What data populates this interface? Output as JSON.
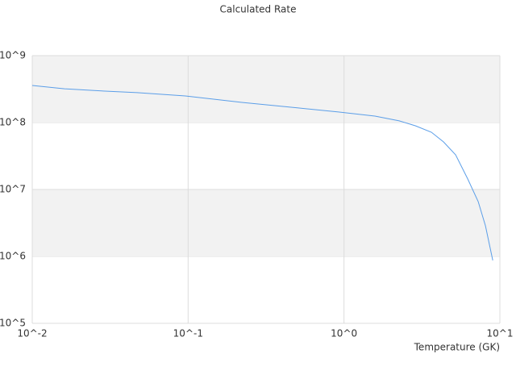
{
  "chart_data": {
    "type": "line",
    "title": "Calculated Rate",
    "x_label": "Temperature (GK)",
    "x_log": true,
    "y_log": true,
    "grid_bands": true,
    "color": "#5b9ee8",
    "xlim": [
      0.01,
      10
    ],
    "xticks": [
      {
        "value": 0.01,
        "label": "10^-2"
      },
      {
        "value": 0.1,
        "label": "10^-1"
      },
      {
        "value": 1,
        "label": "10^0"
      },
      {
        "value": 10,
        "label": "10^1"
      }
    ],
    "ylim": [
      100000,
      1000000000
    ],
    "yticks": [
      {
        "value": 100000,
        "label": "10^5"
      },
      {
        "value": 1000000,
        "label": "10^6"
      },
      {
        "value": 10000000,
        "label": "10^7"
      },
      {
        "value": 100000000,
        "label": "10^8"
      },
      {
        "value": 1000000000,
        "label": "10^9"
      }
    ],
    "x": [
      0.01,
      0.0161,
      0.0292,
      0.047,
      0.096,
      0.221,
      0.509,
      0.92,
      1.58,
      2.26,
      2.87,
      3.64,
      4.35,
      5.2,
      6.22,
      7.26,
      8.08,
      9.0
    ],
    "values": [
      358000000,
      320000000,
      295000000,
      280000000,
      250000000,
      200000000,
      165000000,
      144000000,
      125000000,
      106000000,
      89500000,
      71700000,
      51400000,
      33000000,
      14400000,
      6600000,
      2870000,
      870000
    ]
  }
}
